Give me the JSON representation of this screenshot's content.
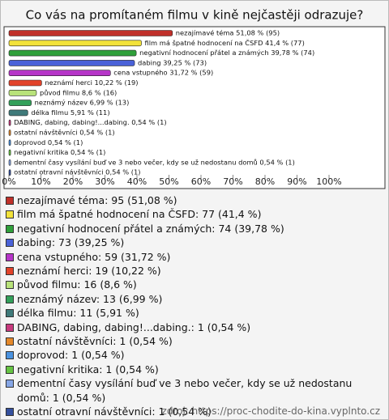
{
  "chart_data": {
    "type": "bar",
    "orientation": "horizontal",
    "title": "Co vás na promítaném filmu v kině nejčastěji odrazuje?",
    "categories": [
      "nezajímavé téma",
      "film má špatné hodnocení na ČSFD",
      "negativní hodnocení přátel a známých",
      "dabing",
      "cena vstupného",
      "neznámí herci",
      "původ filmu",
      "neznámý název",
      "délka filmu",
      "DABING, dabing, dabing!...dabing.",
      "ostatní návštěvníci",
      "doprovod",
      "negativní kritika",
      "dementní časy vysílání buď ve 3 nebo večer, kdy se už nedostanu domů",
      "ostatní otravní návštěvníci"
    ],
    "values": [
      51.08,
      41.4,
      39.78,
      39.25,
      31.72,
      10.22,
      8.6,
      6.99,
      5.91,
      0.54,
      0.54,
      0.54,
      0.54,
      0.54,
      0.54
    ],
    "counts": [
      95,
      77,
      74,
      73,
      59,
      19,
      16,
      13,
      11,
      1,
      1,
      1,
      1,
      1,
      1
    ],
    "value_labels": [
      "nezajímavé téma 51,08 % (95)",
      "film má špatné hodnocení na ČSFD 41,4 % (77)",
      "negativní hodnocení přátel a známých 39,78 % (74)",
      "dabing 39,25 % (73)",
      "cena vstupného 31,72 % (59)",
      "neznámí herci 10,22 % (19)",
      "původ filmu 8,6 % (16)",
      "neznámý název 6,99 % (13)",
      "délka filmu 5,91 % (11)",
      "DABING, dabing, dabing!...dabing. 0,54 % (1)",
      "ostatní návštěvníci 0,54 % (1)",
      "doprovod 0,54 % (1)",
      "negativní kritika 0,54 % (1)",
      "dementní časy vysílání buď ve 3 nebo večer, kdy se už nedostanu domů 0,54 % (1)",
      "ostatní otravní návštěvníci 0,54 % (1)"
    ],
    "legend_labels": [
      "nezajímavé téma: 95 (51,08 %)",
      "film má špatné hodnocení na ČSFD: 77 (41,4 %)",
      "negativní hodnocení přátel a známých: 74 (39,78 %)",
      "dabing: 73 (39,25 %)",
      "cena vstupného: 59 (31,72 %)",
      "neznámí herci: 19 (10,22 %)",
      "původ filmu: 16 (8,6 %)",
      "neznámý název: 13 (6,99 %)",
      "délka filmu: 11 (5,91 %)",
      "DABING, dabing, dabing!...dabing.: 1 (0,54 %)",
      "ostatní návštěvníci: 1 (0,54 %)",
      "doprovod: 1 (0,54 %)",
      "negativní kritika: 1 (0,54 %)",
      "dementní časy vysílání buď ve 3 nebo večer, kdy se už nedostanu domů: 1 (0,54 %)",
      "ostatní otravní návštěvníci: 1 (0,54 %)"
    ],
    "colors": [
      "#c0302a",
      "#f2e23a",
      "#2fa03a",
      "#4a62d8",
      "#b635c8",
      "#e2432a",
      "#b8e27a",
      "#33a05a",
      "#3f7a7a",
      "#c83a7e",
      "#e4882a",
      "#4a92e0",
      "#66c443",
      "#86a6e6",
      "#34509e"
    ],
    "xlim": [
      0,
      100
    ],
    "xticks": [
      {
        "value": 0,
        "label": "0%"
      },
      {
        "value": 10,
        "label": "10%"
      },
      {
        "value": 20,
        "label": "20%"
      },
      {
        "value": 30,
        "label": "30%"
      },
      {
        "value": 40,
        "label": "40%"
      },
      {
        "value": 50,
        "label": "50%"
      },
      {
        "value": 60,
        "label": "60%"
      },
      {
        "value": 70,
        "label": "70%"
      },
      {
        "value": 80,
        "label": "80%"
      },
      {
        "value": 90,
        "label": "90%"
      },
      {
        "value": 100,
        "label": "100%"
      }
    ],
    "source": "zdroj: https://proc-chodite-do-kina.vyplnto.cz"
  }
}
